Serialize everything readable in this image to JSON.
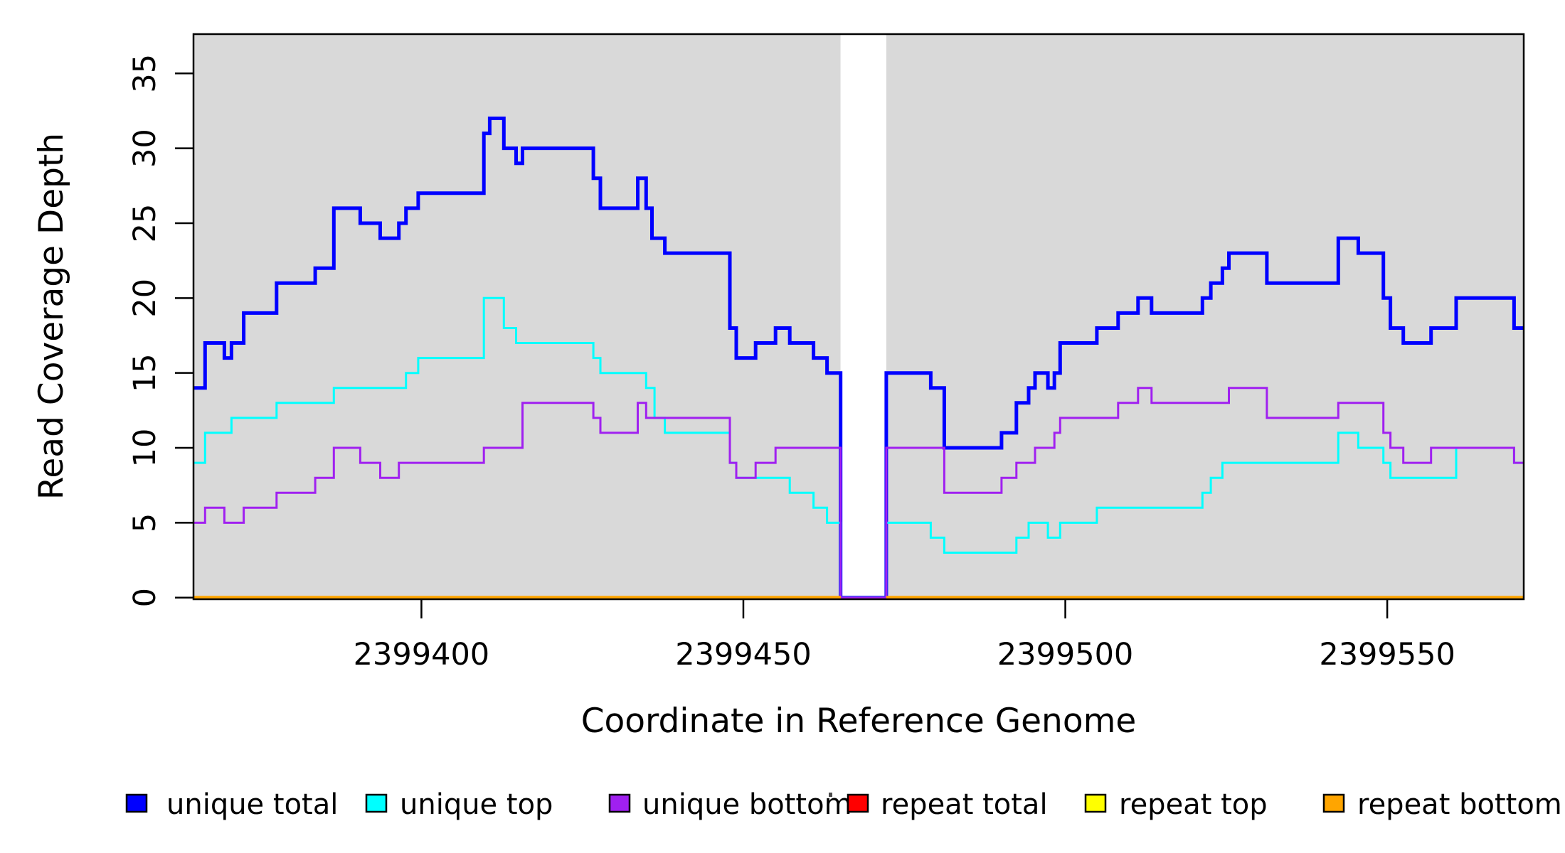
{
  "chart_data": {
    "type": "line",
    "subtype": "step-coverage",
    "title": "",
    "xlabel": "Coordinate in Reference Genome",
    "ylabel": "Read Coverage Depth",
    "xlim": [
      2399364.6,
      2399571.2
    ],
    "ylim": [
      0,
      37.6
    ],
    "x_ticks": [
      2399400,
      2399450,
      2399500,
      2399550
    ],
    "y_ticks": [
      0,
      5,
      10,
      15,
      20,
      25,
      30,
      35
    ],
    "grid": false,
    "plot_background": "#D9D9D9",
    "gap": {
      "start": 2399465.1,
      "end": 2399472.2,
      "color": "#FFFFFF"
    },
    "legend_position": "bottom",
    "series": [
      {
        "name": "unique total",
        "color": "#0000FF",
        "width": 5,
        "steps": [
          [
            2399364.6,
            14
          ],
          [
            2399366.4,
            17
          ],
          [
            2399369.4,
            16
          ],
          [
            2399370.5,
            17
          ],
          [
            2399372.4,
            19
          ],
          [
            2399377.5,
            21
          ],
          [
            2399383.5,
            22
          ],
          [
            2399386.4,
            26
          ],
          [
            2399390.5,
            25
          ],
          [
            2399393.6,
            24
          ],
          [
            2399396.5,
            25
          ],
          [
            2399397.6,
            26
          ],
          [
            2399399.5,
            27
          ],
          [
            2399409.7,
            31
          ],
          [
            2399410.6,
            32
          ],
          [
            2399412.8,
            30
          ],
          [
            2399414.7,
            29
          ],
          [
            2399415.7,
            30
          ],
          [
            2399426.7,
            28
          ],
          [
            2399427.8,
            26
          ],
          [
            2399433.6,
            28
          ],
          [
            2399434.9,
            26
          ],
          [
            2399435.8,
            24
          ],
          [
            2399437.8,
            23
          ],
          [
            2399447.9,
            18
          ],
          [
            2399448.9,
            16
          ],
          [
            2399451.9,
            17
          ],
          [
            2399455.0,
            18
          ],
          [
            2399457.2,
            17
          ],
          [
            2399460.9,
            16
          ],
          [
            2399463.0,
            15
          ],
          [
            2399465.1,
            0
          ],
          [
            2399472.2,
            15
          ],
          [
            2399479.1,
            14
          ],
          [
            2399481.2,
            10
          ],
          [
            2399490.1,
            11
          ],
          [
            2399492.4,
            13
          ],
          [
            2399494.3,
            14
          ],
          [
            2399495.3,
            15
          ],
          [
            2399497.3,
            14
          ],
          [
            2399498.3,
            15
          ],
          [
            2399499.2,
            17
          ],
          [
            2399504.9,
            18
          ],
          [
            2399508.2,
            19
          ],
          [
            2399511.3,
            20
          ],
          [
            2399513.4,
            19
          ],
          [
            2399521.3,
            20
          ],
          [
            2399522.6,
            21
          ],
          [
            2399524.4,
            22
          ],
          [
            2399525.4,
            23
          ],
          [
            2399531.3,
            21
          ],
          [
            2399542.4,
            24
          ],
          [
            2399545.5,
            23
          ],
          [
            2399549.4,
            20
          ],
          [
            2399550.5,
            18
          ],
          [
            2399552.5,
            17
          ],
          [
            2399556.8,
            18
          ],
          [
            2399560.7,
            20
          ],
          [
            2399569.7,
            18
          ],
          [
            2399571.2,
            18
          ]
        ]
      },
      {
        "name": "unique top",
        "color": "#00FFFF",
        "width": 3,
        "steps": [
          [
            2399364.6,
            9
          ],
          [
            2399366.4,
            11
          ],
          [
            2399370.5,
            12
          ],
          [
            2399377.5,
            13
          ],
          [
            2399386.4,
            14
          ],
          [
            2399397.6,
            15
          ],
          [
            2399399.5,
            16
          ],
          [
            2399409.7,
            20
          ],
          [
            2399412.8,
            18
          ],
          [
            2399414.7,
            17
          ],
          [
            2399426.7,
            16
          ],
          [
            2399427.8,
            15
          ],
          [
            2399434.9,
            14
          ],
          [
            2399436.2,
            12
          ],
          [
            2399437.8,
            11
          ],
          [
            2399447.9,
            9
          ],
          [
            2399448.9,
            8
          ],
          [
            2399457.2,
            7
          ],
          [
            2399460.9,
            6
          ],
          [
            2399463.0,
            5
          ],
          [
            2399465.1,
            0
          ],
          [
            2399472.2,
            5
          ],
          [
            2399479.1,
            4
          ],
          [
            2399481.2,
            3
          ],
          [
            2399492.4,
            4
          ],
          [
            2399494.3,
            5
          ],
          [
            2399497.3,
            4
          ],
          [
            2399499.2,
            5
          ],
          [
            2399504.9,
            6
          ],
          [
            2399521.3,
            7
          ],
          [
            2399522.6,
            8
          ],
          [
            2399524.4,
            9
          ],
          [
            2399542.4,
            11
          ],
          [
            2399545.5,
            10
          ],
          [
            2399549.4,
            9
          ],
          [
            2399550.5,
            8
          ],
          [
            2399560.7,
            10
          ],
          [
            2399569.7,
            9
          ],
          [
            2399571.2,
            9
          ]
        ]
      },
      {
        "name": "unique bottom",
        "color": "#A020F0",
        "width": 3,
        "steps": [
          [
            2399364.6,
            5
          ],
          [
            2399366.4,
            6
          ],
          [
            2399369.4,
            5
          ],
          [
            2399372.4,
            6
          ],
          [
            2399377.5,
            7
          ],
          [
            2399383.5,
            8
          ],
          [
            2399386.4,
            10
          ],
          [
            2399390.5,
            9
          ],
          [
            2399393.6,
            8
          ],
          [
            2399396.5,
            9
          ],
          [
            2399409.7,
            10
          ],
          [
            2399415.7,
            13
          ],
          [
            2399426.7,
            12
          ],
          [
            2399427.8,
            11
          ],
          [
            2399433.6,
            13
          ],
          [
            2399434.9,
            12
          ],
          [
            2399447.9,
            9
          ],
          [
            2399448.9,
            8
          ],
          [
            2399451.9,
            9
          ],
          [
            2399455.0,
            10
          ],
          [
            2399465.1,
            0
          ],
          [
            2399472.2,
            10
          ],
          [
            2399481.2,
            7
          ],
          [
            2399490.1,
            8
          ],
          [
            2399492.4,
            9
          ],
          [
            2399495.3,
            10
          ],
          [
            2399498.3,
            11
          ],
          [
            2399499.2,
            12
          ],
          [
            2399508.2,
            13
          ],
          [
            2399511.3,
            14
          ],
          [
            2399513.4,
            13
          ],
          [
            2399525.4,
            14
          ],
          [
            2399531.3,
            12
          ],
          [
            2399542.4,
            13
          ],
          [
            2399549.4,
            11
          ],
          [
            2399550.5,
            10
          ],
          [
            2399552.5,
            9
          ],
          [
            2399556.8,
            10
          ],
          [
            2399569.7,
            9
          ],
          [
            2399571.2,
            9
          ]
        ]
      },
      {
        "name": "repeat total",
        "color": "#FF0000",
        "width": 4,
        "zero_line": true
      },
      {
        "name": "repeat top",
        "color": "#FFFF00",
        "width": 4,
        "zero_line": true
      },
      {
        "name": "repeat bottom",
        "color": "#FFA500",
        "width": 5,
        "zero_line": true
      }
    ],
    "legend": [
      "unique total",
      "unique top",
      "unique bottom",
      "repeat total",
      "repeat top",
      "repeat bottom"
    ]
  },
  "labels": {
    "x_axis_title": "Coordinate in Reference Genome",
    "y_axis_title": "Read Coverage Depth"
  }
}
